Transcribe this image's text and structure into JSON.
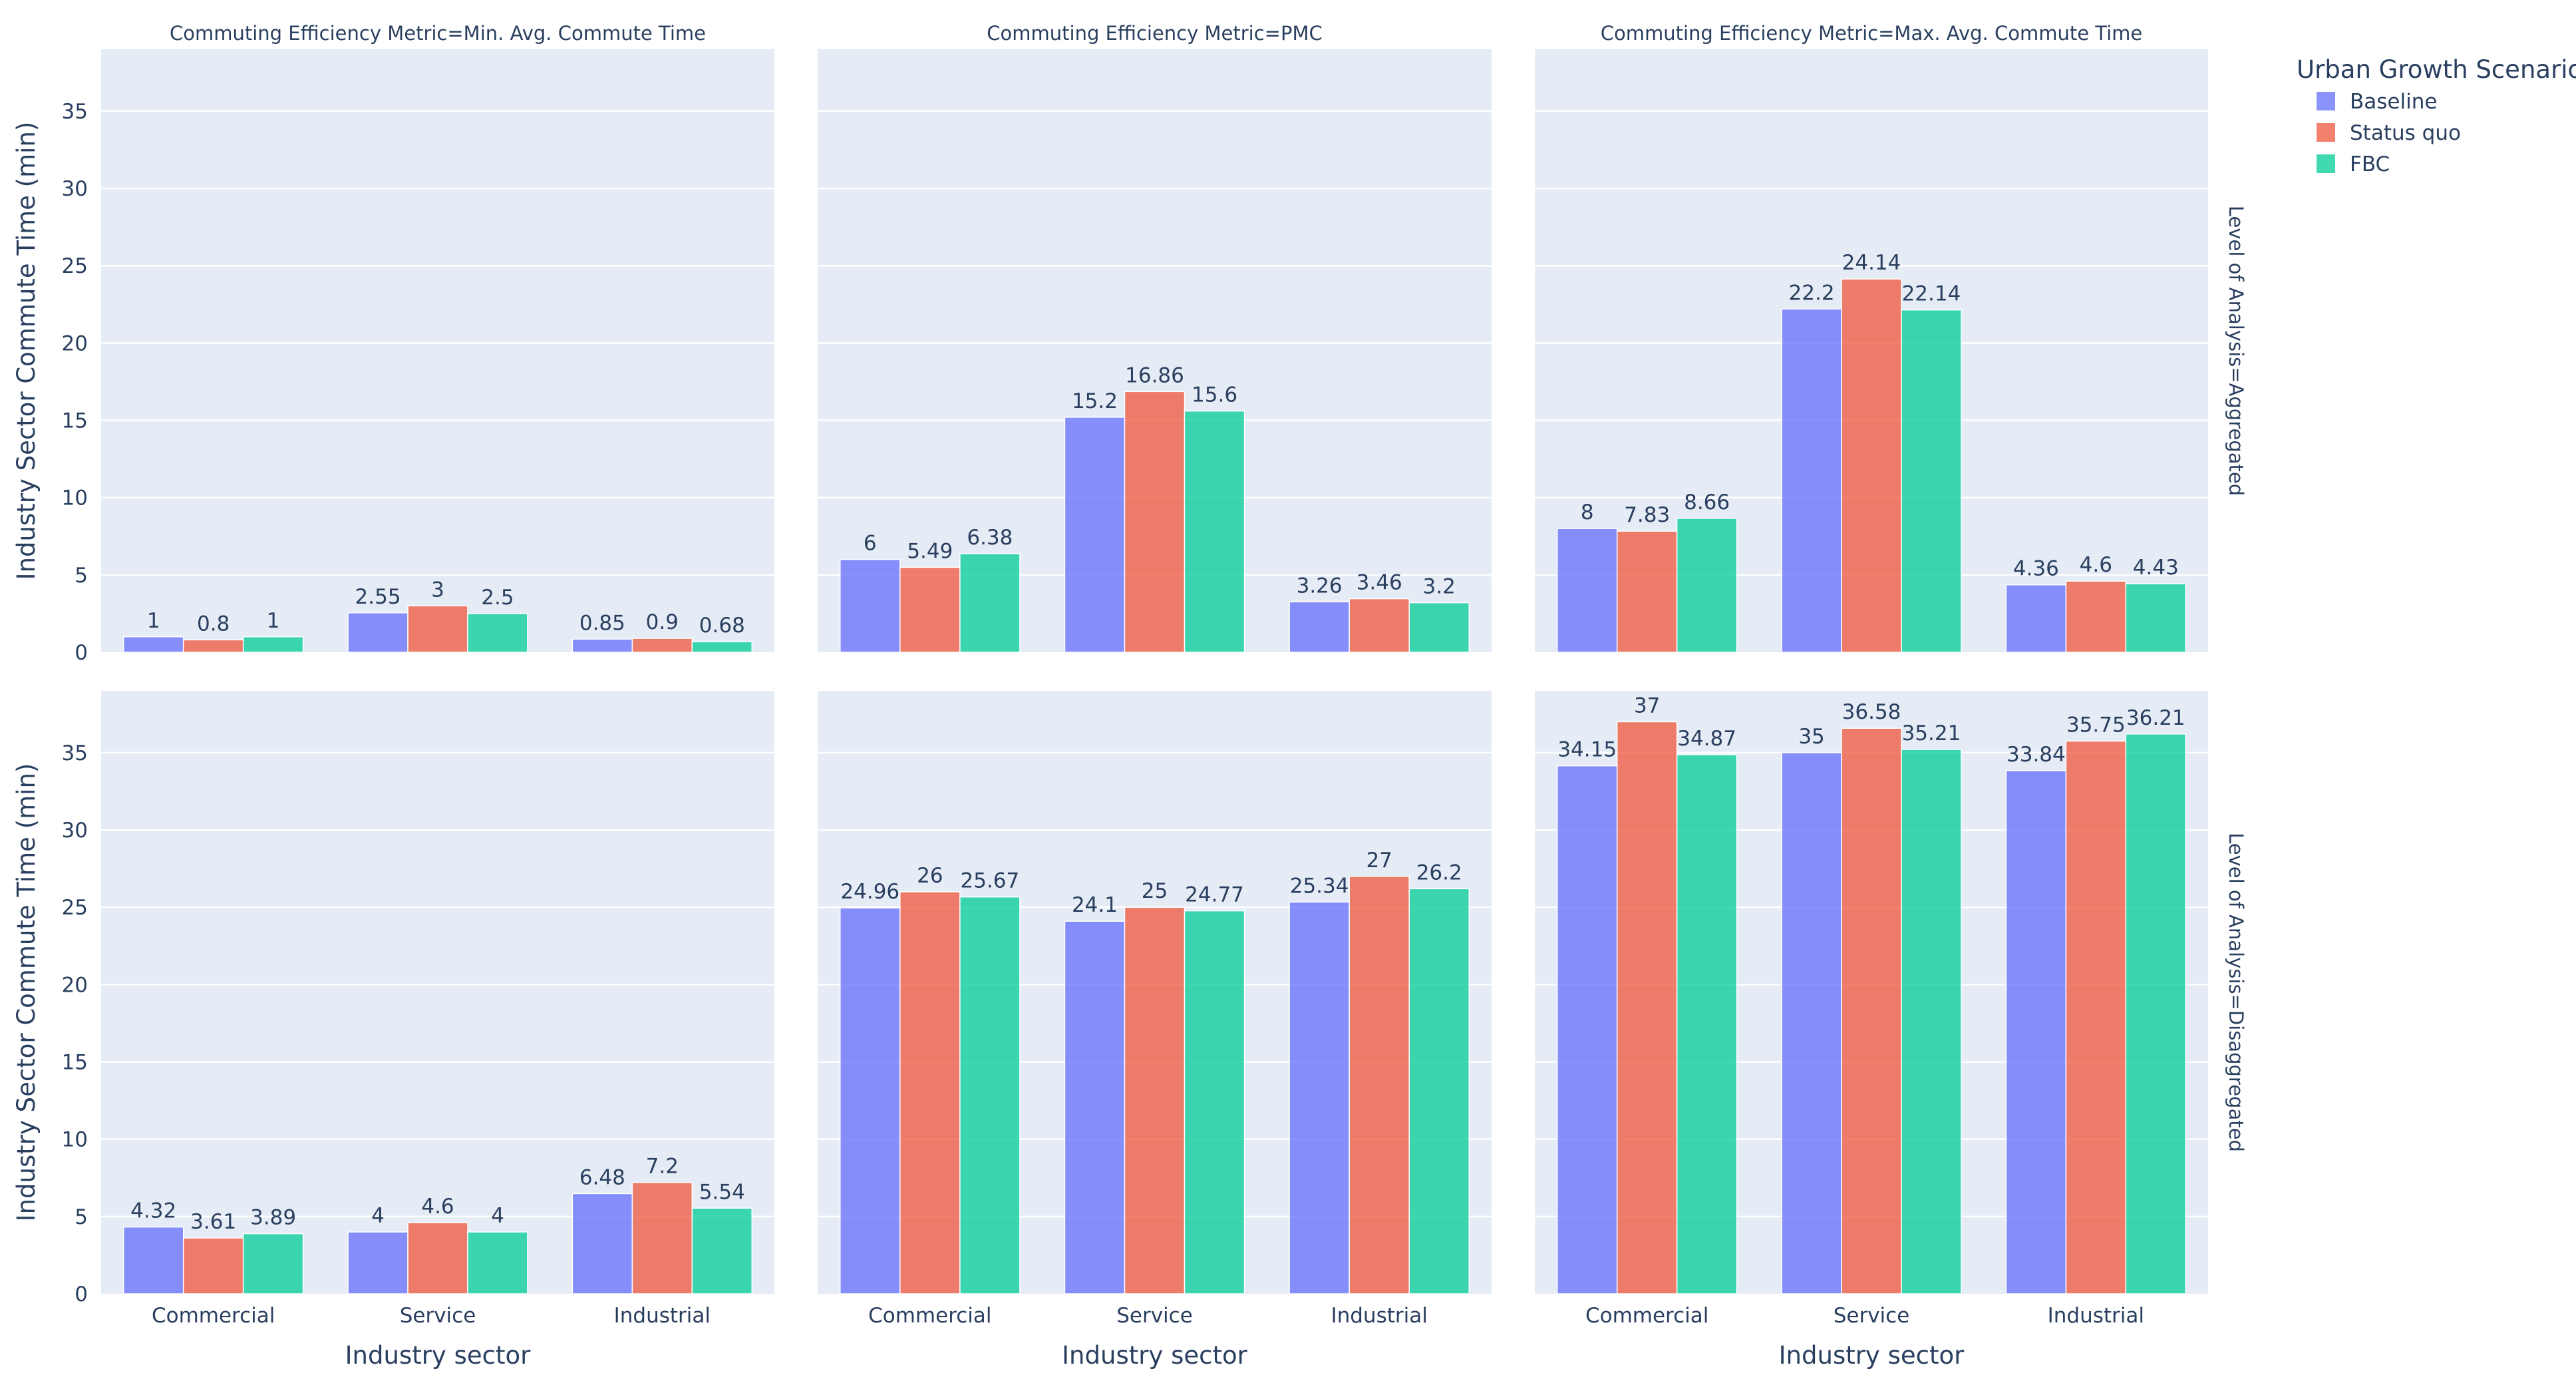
{
  "chart_data": {
    "type": "bar",
    "layout": "faceted-grouped-bar",
    "categories": [
      "Commercial",
      "Service",
      "Industrial"
    ],
    "xlabel": "Industry sector",
    "ylabel": "Industry Sector Commute Time (min)",
    "ylim": [
      0,
      39
    ],
    "yticks": [
      0,
      5,
      10,
      15,
      20,
      25,
      30,
      35
    ],
    "legend": {
      "title": "Urban Growth Scenario",
      "placement": "top-right",
      "items": [
        {
          "name": "Baseline",
          "color": "#636efa"
        },
        {
          "name": "Status quo",
          "color": "#ef553b"
        },
        {
          "name": "FBC",
          "color": "#00cc96"
        }
      ]
    },
    "column_facets": [
      "Commuting Efficiency Metric=Min. Avg. Commute Time",
      "Commuting Efficiency Metric=PMC",
      "Commuting Efficiency Metric=Max. Avg. Commute Time"
    ],
    "row_facets": [
      "Level of Analysis=Aggregated",
      "Level of Analysis=Disaggregated"
    ],
    "panels": [
      {
        "row": 0,
        "col": 0,
        "series": [
          {
            "name": "Baseline",
            "values": [
              1,
              2.55,
              0.85
            ]
          },
          {
            "name": "Status quo",
            "values": [
              0.8,
              3,
              0.9
            ]
          },
          {
            "name": "FBC",
            "values": [
              1,
              2.5,
              0.68
            ]
          }
        ]
      },
      {
        "row": 0,
        "col": 1,
        "series": [
          {
            "name": "Baseline",
            "values": [
              6,
              15.2,
              3.26
            ]
          },
          {
            "name": "Status quo",
            "values": [
              5.49,
              16.86,
              3.46
            ]
          },
          {
            "name": "FBC",
            "values": [
              6.38,
              15.6,
              3.2
            ]
          }
        ]
      },
      {
        "row": 0,
        "col": 2,
        "series": [
          {
            "name": "Baseline",
            "values": [
              8,
              22.2,
              4.36
            ]
          },
          {
            "name": "Status quo",
            "values": [
              7.83,
              24.14,
              4.6
            ]
          },
          {
            "name": "FBC",
            "values": [
              8.66,
              22.14,
              4.43
            ]
          }
        ]
      },
      {
        "row": 1,
        "col": 0,
        "series": [
          {
            "name": "Baseline",
            "values": [
              4.32,
              4,
              6.48
            ]
          },
          {
            "name": "Status quo",
            "values": [
              3.61,
              4.6,
              7.2
            ]
          },
          {
            "name": "FBC",
            "values": [
              3.89,
              4,
              5.54
            ]
          }
        ]
      },
      {
        "row": 1,
        "col": 1,
        "series": [
          {
            "name": "Baseline",
            "values": [
              24.96,
              24.1,
              25.34
            ]
          },
          {
            "name": "Status quo",
            "values": [
              26,
              25,
              27
            ]
          },
          {
            "name": "FBC",
            "values": [
              25.67,
              24.77,
              26.2
            ]
          }
        ]
      },
      {
        "row": 1,
        "col": 2,
        "series": [
          {
            "name": "Baseline",
            "values": [
              34.15,
              35,
              33.84
            ]
          },
          {
            "name": "Status quo",
            "values": [
              37,
              36.58,
              35.75
            ]
          },
          {
            "name": "FBC",
            "values": [
              34.87,
              35.21,
              36.21
            ]
          }
        ]
      }
    ]
  }
}
